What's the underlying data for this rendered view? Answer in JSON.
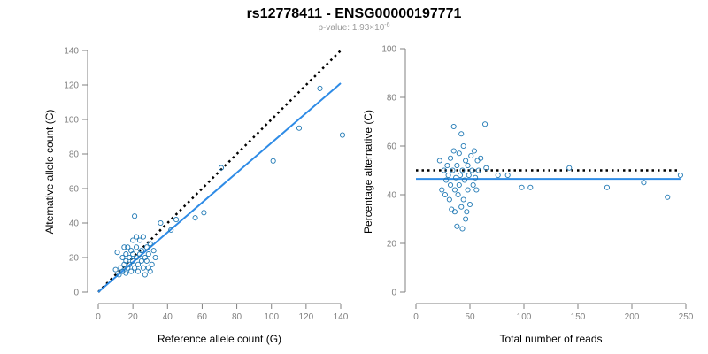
{
  "figure": {
    "title": "rs12778411 - ENSG00000197771",
    "subtitle_prefix": "p-value: 1.93×10",
    "subtitle_exponent": "-6"
  },
  "colors": {
    "points": "#1f78b4",
    "fit_line": "#2e8be6",
    "reference_line": "#000000",
    "axis": "#808080"
  },
  "chart_data": [
    {
      "type": "scatter",
      "title": "",
      "xlabel": "Reference allele count (G)",
      "ylabel": "Alternative allele count (C)",
      "xlim": [
        0,
        140
      ],
      "ylim": [
        0,
        140
      ],
      "xticks": [
        0,
        20,
        40,
        60,
        80,
        100,
        120,
        140
      ],
      "yticks": [
        0,
        20,
        40,
        60,
        80,
        100,
        120,
        140
      ],
      "grid": false,
      "points": [
        {
          "x": 10,
          "y": 13
        },
        {
          "x": 11,
          "y": 23
        },
        {
          "x": 12,
          "y": 10
        },
        {
          "x": 13,
          "y": 14
        },
        {
          "x": 14,
          "y": 20
        },
        {
          "x": 14,
          "y": 12
        },
        {
          "x": 15,
          "y": 26
        },
        {
          "x": 15,
          "y": 16
        },
        {
          "x": 16,
          "y": 18
        },
        {
          "x": 16,
          "y": 22
        },
        {
          "x": 16,
          "y": 11
        },
        {
          "x": 17,
          "y": 14
        },
        {
          "x": 17,
          "y": 26
        },
        {
          "x": 18,
          "y": 20
        },
        {
          "x": 18,
          "y": 16
        },
        {
          "x": 19,
          "y": 12
        },
        {
          "x": 19,
          "y": 24
        },
        {
          "x": 20,
          "y": 18
        },
        {
          "x": 20,
          "y": 22
        },
        {
          "x": 21,
          "y": 14
        },
        {
          "x": 21,
          "y": 44
        },
        {
          "x": 22,
          "y": 20
        },
        {
          "x": 22,
          "y": 26
        },
        {
          "x": 23,
          "y": 16
        },
        {
          "x": 23,
          "y": 12
        },
        {
          "x": 24,
          "y": 30
        },
        {
          "x": 24,
          "y": 22
        },
        {
          "x": 25,
          "y": 18
        },
        {
          "x": 25,
          "y": 24
        },
        {
          "x": 26,
          "y": 14
        },
        {
          "x": 26,
          "y": 32
        },
        {
          "x": 27,
          "y": 20
        },
        {
          "x": 27,
          "y": 10
        },
        {
          "x": 28,
          "y": 26
        },
        {
          "x": 28,
          "y": 18
        },
        {
          "x": 29,
          "y": 22
        },
        {
          "x": 29,
          "y": 14
        },
        {
          "x": 30,
          "y": 12
        },
        {
          "x": 30,
          "y": 28
        },
        {
          "x": 31,
          "y": 16
        },
        {
          "x": 32,
          "y": 24
        },
        {
          "x": 33,
          "y": 20
        },
        {
          "x": 20,
          "y": 30
        },
        {
          "x": 22,
          "y": 32
        },
        {
          "x": 36,
          "y": 40
        },
        {
          "x": 42,
          "y": 36
        },
        {
          "x": 45,
          "y": 42
        },
        {
          "x": 56,
          "y": 43
        },
        {
          "x": 61,
          "y": 46
        },
        {
          "x": 71,
          "y": 72
        },
        {
          "x": 101,
          "y": 76
        },
        {
          "x": 116,
          "y": 95
        },
        {
          "x": 128,
          "y": 118
        },
        {
          "x": 141,
          "y": 91
        }
      ],
      "fit_line": {
        "x": [
          0,
          140
        ],
        "y": [
          0,
          121
        ]
      },
      "reference_line": {
        "x": [
          0,
          140
        ],
        "y": [
          0,
          140
        ]
      }
    },
    {
      "type": "scatter",
      "title": "",
      "xlabel": "Total number of reads",
      "ylabel": "Percentage alternative (C)",
      "xlim": [
        0,
        250
      ],
      "ylim": [
        0,
        100
      ],
      "xticks": [
        0,
        50,
        100,
        150,
        200,
        250
      ],
      "yticks": [
        0,
        20,
        40,
        60,
        80,
        100
      ],
      "grid": false,
      "points": [
        {
          "x": 22,
          "y": 54
        },
        {
          "x": 24,
          "y": 42
        },
        {
          "x": 26,
          "y": 50
        },
        {
          "x": 27,
          "y": 40
        },
        {
          "x": 28,
          "y": 46
        },
        {
          "x": 29,
          "y": 52
        },
        {
          "x": 30,
          "y": 48
        },
        {
          "x": 31,
          "y": 38
        },
        {
          "x": 32,
          "y": 55
        },
        {
          "x": 32,
          "y": 44
        },
        {
          "x": 33,
          "y": 34
        },
        {
          "x": 34,
          "y": 50
        },
        {
          "x": 35,
          "y": 58
        },
        {
          "x": 35,
          "y": 68
        },
        {
          "x": 36,
          "y": 42
        },
        {
          "x": 36,
          "y": 33
        },
        {
          "x": 37,
          "y": 47
        },
        {
          "x": 38,
          "y": 52
        },
        {
          "x": 38,
          "y": 27
        },
        {
          "x": 39,
          "y": 40
        },
        {
          "x": 40,
          "y": 57
        },
        {
          "x": 40,
          "y": 44
        },
        {
          "x": 41,
          "y": 48
        },
        {
          "x": 42,
          "y": 35
        },
        {
          "x": 42,
          "y": 65
        },
        {
          "x": 43,
          "y": 50
        },
        {
          "x": 43,
          "y": 26
        },
        {
          "x": 44,
          "y": 60
        },
        {
          "x": 44,
          "y": 38
        },
        {
          "x": 45,
          "y": 46
        },
        {
          "x": 46,
          "y": 54
        },
        {
          "x": 46,
          "y": 30
        },
        {
          "x": 47,
          "y": 33
        },
        {
          "x": 48,
          "y": 52
        },
        {
          "x": 48,
          "y": 42
        },
        {
          "x": 49,
          "y": 48
        },
        {
          "x": 50,
          "y": 36
        },
        {
          "x": 51,
          "y": 56
        },
        {
          "x": 52,
          "y": 50
        },
        {
          "x": 53,
          "y": 44
        },
        {
          "x": 54,
          "y": 58
        },
        {
          "x": 55,
          "y": 47
        },
        {
          "x": 56,
          "y": 42
        },
        {
          "x": 57,
          "y": 54
        },
        {
          "x": 58,
          "y": 50
        },
        {
          "x": 60,
          "y": 55
        },
        {
          "x": 64,
          "y": 69
        },
        {
          "x": 65,
          "y": 51
        },
        {
          "x": 76,
          "y": 48
        },
        {
          "x": 85,
          "y": 48
        },
        {
          "x": 98,
          "y": 43
        },
        {
          "x": 106,
          "y": 43
        },
        {
          "x": 142,
          "y": 51
        },
        {
          "x": 177,
          "y": 43
        },
        {
          "x": 211,
          "y": 45
        },
        {
          "x": 233,
          "y": 39
        },
        {
          "x": 245,
          "y": 48
        }
      ],
      "fit_line": {
        "x": [
          0,
          245
        ],
        "y": [
          46.5,
          46.5
        ]
      },
      "reference_line": {
        "x": [
          0,
          245
        ],
        "y": [
          50,
          50
        ]
      }
    }
  ]
}
